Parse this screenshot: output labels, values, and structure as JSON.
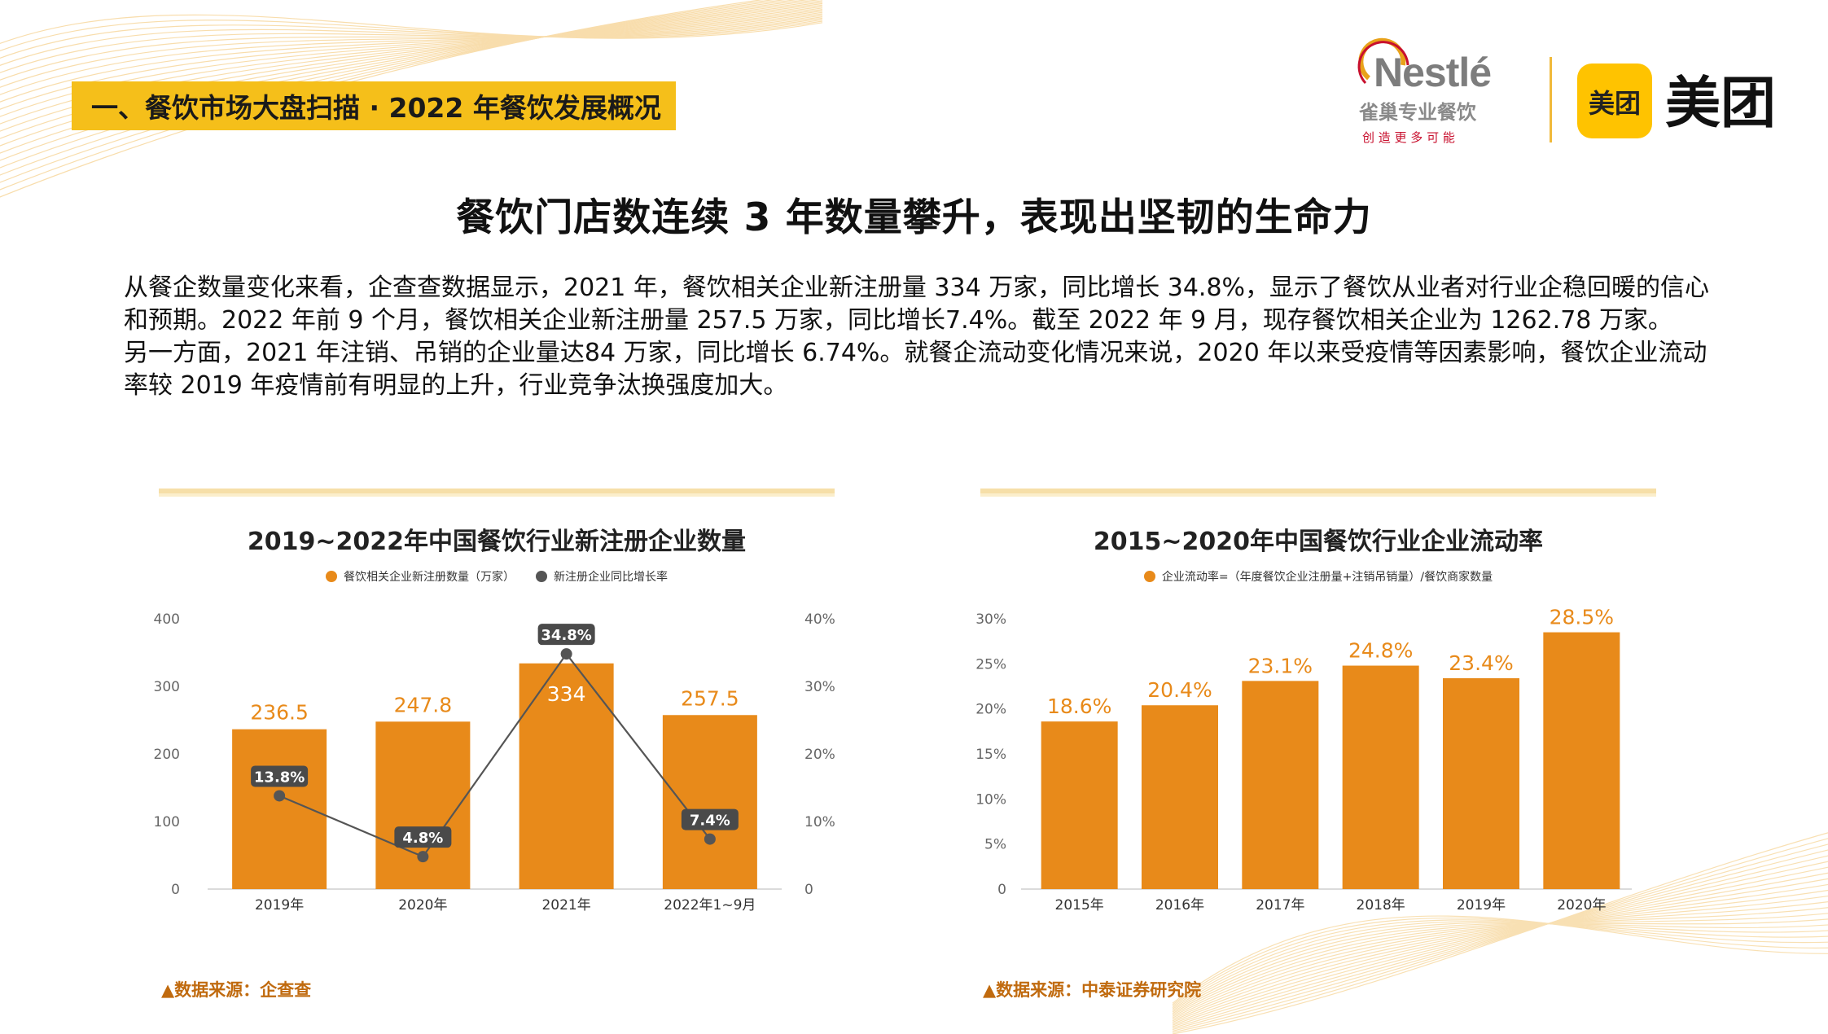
{
  "section_tag": "一、餐饮市场大盘扫描 · 2022 年餐饮发展概况",
  "logos": {
    "nestle_wordmark": "Nestlé",
    "nestle_cn": "雀巢专业餐饮",
    "nestle_slogan": "创 造 更 多 可 能",
    "meituan_badge": "美团",
    "meituan_wordmark": "美团",
    "brand_yellow": "#ffc300",
    "nestle_red": "#c8102e"
  },
  "headline": "餐饮门店数连续 3 年数量攀升，表现出坚韧的生命力",
  "body": {
    "paragraph_1": "从餐企数量变化来看，企查查数据显示，2021 年，餐饮相关企业新注册量 334 万家，同比增长 34.8%，显示了餐饮从业者对行业企稳回暖的信心和预期。2022 年前 9 个月，餐饮相关企业新注册量 257.5 万家，同比增长7.4%。截至 2022 年 9 月，现存餐饮相关企业为 1262.78 万家。",
    "paragraph_2": "另一方面，2021 年注销、吊销的企业量达84 万家，同比增长 6.74%。就餐企流动变化情况来说，2020 年以来受疫情等因素影响，餐饮企业流动率较 2019 年疫情前有明显的上升，行业竞争汰换强度加大。"
  },
  "colors": {
    "accent_orange": "#e88a1a",
    "tag_yellow": "#f5bf1a",
    "line_gray": "#555555",
    "label_dark": "#4a4a4a",
    "source_color": "#c06a0e"
  },
  "chart_data": [
    {
      "type": "bar",
      "title": "2019~2022年中国餐饮行业新注册企业数量",
      "categories": [
        "2019年",
        "2020年",
        "2021年",
        "2022年1~9月"
      ],
      "series": [
        {
          "name": "餐饮相关企业新注册数量（万家）",
          "type": "bar",
          "axis": "left",
          "values": [
            236.5,
            247.8,
            334,
            257.5
          ],
          "labels": [
            "236.5",
            "247.8",
            "334",
            "257.5"
          ]
        },
        {
          "name": "新注册企业同比增长率",
          "type": "line",
          "axis": "right",
          "values": [
            13.8,
            4.8,
            34.8,
            7.4
          ],
          "labels": [
            "13.8%",
            "4.8%",
            "34.8%",
            "7.4%"
          ]
        }
      ],
      "ylim": [
        0,
        400
      ],
      "yticks": [
        "0",
        "100",
        "200",
        "300",
        "400"
      ],
      "y2lim": [
        0,
        40
      ],
      "y2ticks": [
        "0",
        "10%",
        "20%",
        "30%",
        "40%"
      ],
      "grid": false,
      "legend": "top-center",
      "source": "▲数据来源：企查查"
    },
    {
      "type": "bar",
      "title": "2015~2020年中国餐饮行业企业流动率",
      "categories": [
        "2015年",
        "2016年",
        "2017年",
        "2018年",
        "2019年",
        "2020年"
      ],
      "series": [
        {
          "name": "企业流动率=（年度餐饮企业注册量+注销吊销量）/餐饮商家数量",
          "type": "bar",
          "axis": "left",
          "values": [
            18.6,
            20.4,
            23.1,
            24.8,
            23.4,
            28.5
          ],
          "labels": [
            "18.6%",
            "20.4%",
            "23.1%",
            "24.8%",
            "23.4%",
            "28.5%"
          ]
        }
      ],
      "ylim": [
        0,
        30
      ],
      "yticks": [
        "0",
        "5%",
        "10%",
        "15%",
        "20%",
        "25%",
        "30%"
      ],
      "grid": false,
      "legend": "top-center",
      "source": "▲数据来源：中泰证券研究院"
    }
  ]
}
